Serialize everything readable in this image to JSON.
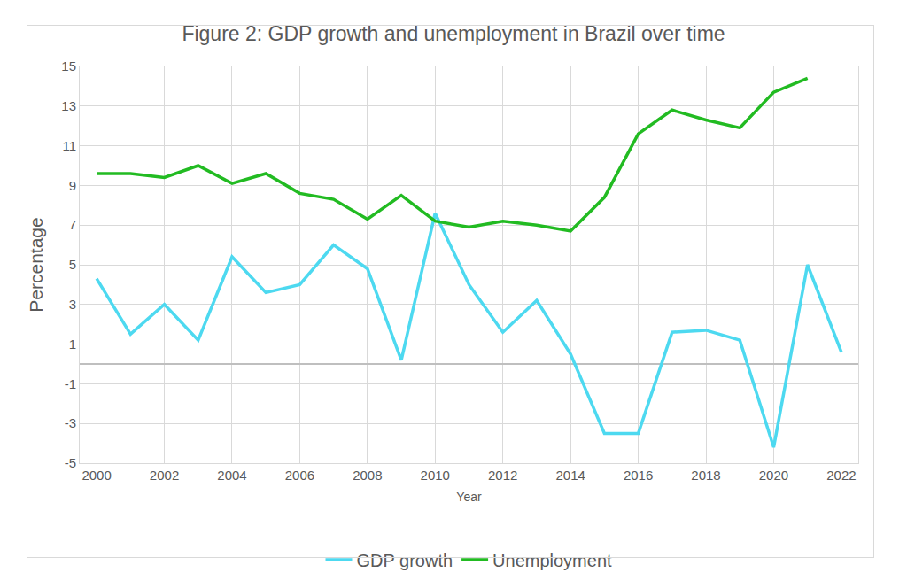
{
  "chart_data": {
    "type": "line",
    "title": "Figure 2: GDP growth and unemployment in Brazil over time",
    "x_label": "Year",
    "y_label": "Percentage",
    "x": [
      2000,
      2001,
      2002,
      2003,
      2004,
      2005,
      2006,
      2007,
      2008,
      2009,
      2010,
      2011,
      2012,
      2013,
      2014,
      2015,
      2016,
      2017,
      2018,
      2019,
      2020,
      2021,
      2022
    ],
    "series": [
      {
        "name": "GDP growth",
        "color": "#4dd9f0",
        "values": [
          4.3,
          1.5,
          3.0,
          1.2,
          5.4,
          3.6,
          4.0,
          6.0,
          4.8,
          0.2,
          7.6,
          4.0,
          1.6,
          3.2,
          0.5,
          -3.5,
          -3.5,
          1.6,
          1.7,
          1.2,
          -4.2,
          5.0,
          0.6
        ]
      },
      {
        "name": "Unemployment",
        "color": "#22bb22",
        "values": [
          9.6,
          9.6,
          9.4,
          10.0,
          9.1,
          9.6,
          8.6,
          8.3,
          7.3,
          8.5,
          7.2,
          6.9,
          7.2,
          7.0,
          6.7,
          8.4,
          11.6,
          12.8,
          12.3,
          11.9,
          13.7,
          14.4,
          null
        ]
      }
    ],
    "xlim": [
      1999.5,
      2022.5
    ],
    "xticks": [
      2000,
      2002,
      2004,
      2006,
      2008,
      2010,
      2012,
      2014,
      2016,
      2018,
      2020,
      2022
    ],
    "ylim": [
      -5,
      15
    ],
    "yticks": [
      -5,
      -3,
      -1,
      1,
      3,
      5,
      7,
      9,
      11,
      13,
      15
    ],
    "grid": true,
    "legend": "bottom"
  }
}
